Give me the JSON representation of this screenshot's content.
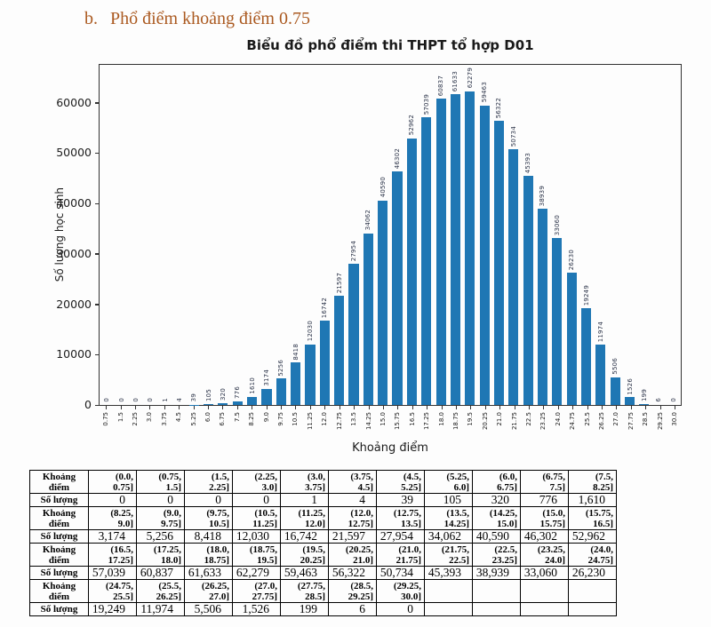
{
  "page": {
    "heading_index": "b.",
    "heading_text": "Phổ điểm khoảng điểm 0.75",
    "heading_color": "#ab5a21"
  },
  "chart_data": {
    "type": "bar",
    "title": "Biểu đồ phổ điểm thi THPT tổ hợp D01",
    "xlabel": "Khoảng điểm",
    "ylabel": "Số lượng học sinh",
    "categories": [
      "0.75",
      "1.5",
      "2.25",
      "3.0",
      "3.75",
      "4.5",
      "5.25",
      "6.0",
      "6.75",
      "7.5",
      "8.25",
      "9.0",
      "9.75",
      "10.5",
      "11.25",
      "12.0",
      "12.75",
      "13.5",
      "14.25",
      "15.0",
      "15.75",
      "16.5",
      "17.25",
      "18.0",
      "18.75",
      "19.5",
      "20.25",
      "21.0",
      "21.75",
      "22.5",
      "23.25",
      "24.0",
      "24.75",
      "25.5",
      "26.25",
      "27.0",
      "27.75",
      "28.5",
      "29.25",
      "30.0"
    ],
    "values": [
      0,
      0,
      0,
      0,
      1,
      4,
      39,
      105,
      320,
      776,
      1610,
      3174,
      5256,
      8418,
      12030,
      16742,
      21597,
      27954,
      34062,
      40590,
      46302,
      52962,
      57039,
      60837,
      61633,
      62279,
      59463,
      56322,
      50734,
      45393,
      38939,
      33060,
      26230,
      19249,
      11974,
      5506,
      1526,
      199,
      6,
      0
    ],
    "bar_labels": [
      "0",
      "0",
      "0",
      "0",
      "1",
      "4",
      "39",
      "105",
      "320",
      "776",
      "1610",
      "3174",
      "5256",
      "8418",
      "12030",
      "16742",
      "21597",
      "27954",
      "34062",
      "40590",
      "46302",
      "52962",
      "57039",
      "60837",
      "61633",
      "62279",
      "59463",
      "56322",
      "50734",
      "45393",
      "38939",
      "33060",
      "26230",
      "19249",
      "11974",
      "5506",
      "1526",
      "199",
      "6",
      "0"
    ],
    "yticks": [
      0,
      10000,
      20000,
      30000,
      40000,
      50000,
      60000
    ],
    "ylim": [
      0,
      67500
    ],
    "grid": false,
    "legend": "none",
    "bar_color": "#1f77b4"
  },
  "table": {
    "row_label_range": "Khoảng điểm",
    "row_label_count": "Số lượng",
    "columns_per_row": 11,
    "groups": [
      {
        "ranges": [
          "(0.0, 0.75]",
          "(0.75, 1.5]",
          "(1.5, 2.25]",
          "(2.25, 3.0]",
          "(3.0, 3.75]",
          "(3.75, 4.5]",
          "(4.5, 5.25]",
          "(5.25, 6.0]",
          "(6.0, 6.75]",
          "(6.75, 7.5]",
          "(7.5, 8.25]"
        ],
        "counts": [
          "0",
          "0",
          "0",
          "0",
          "1",
          "4",
          "39",
          "105",
          "320",
          "776",
          "1,610"
        ]
      },
      {
        "ranges": [
          "(8.25, 9.0]",
          "(9.0, 9.75]",
          "(9.75, 10.5]",
          "(10.5, 11.25]",
          "(11.25, 12.0]",
          "(12.0, 12.75]",
          "(12.75, 13.5]",
          "(13.5, 14.25]",
          "(14.25, 15.0]",
          "(15.0, 15.75]",
          "(15.75, 16.5]"
        ],
        "counts": [
          "3,174",
          "5,256",
          "8,418",
          "12,030",
          "16,742",
          "21,597",
          "27,954",
          "34,062",
          "40,590",
          "46,302",
          "52,962"
        ]
      },
      {
        "ranges": [
          "(16.5, 17.25]",
          "(17.25, 18.0]",
          "(18.0, 18.75]",
          "(18.75, 19.5]",
          "(19.5, 20.25]",
          "(20.25, 21.0]",
          "(21.0, 21.75]",
          "(21.75, 22.5]",
          "(22.5, 23.25]",
          "(23.25, 24.0]",
          "(24.0, 24.75]"
        ],
        "counts": [
          "57,039",
          "60,837",
          "61,633",
          "62,279",
          "59,463",
          "56,322",
          "50,734",
          "45,393",
          "38,939",
          "33,060",
          "26,230"
        ]
      },
      {
        "ranges": [
          "(24.75, 25.5]",
          "(25.5, 26.25]",
          "(26.25, 27.0]",
          "(27.0, 27.75]",
          "(27.75, 28.5]",
          "(28.5, 29.25]",
          "(29.25, 30.0]"
        ],
        "counts": [
          "19,249",
          "11,974",
          "5,506",
          "1,526",
          "199",
          "6",
          "0"
        ]
      }
    ]
  }
}
